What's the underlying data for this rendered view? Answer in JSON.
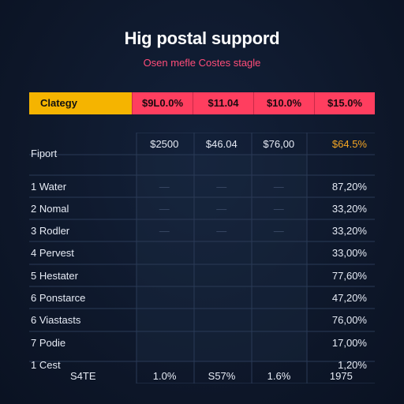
{
  "chart_data": {
    "type": "table",
    "title": "Hig postal suppord",
    "subtitle": "Osen mefle Costes stagle",
    "header": {
      "category_label": "Clategy",
      "columns": [
        "$9L0.0%",
        "$11.04",
        "$10.0%",
        "$15.0%"
      ]
    },
    "totals_row": {
      "label": "Fiport",
      "values": [
        "$2500",
        "$46.04",
        "$76,00",
        "$64.5%"
      ]
    },
    "rows": [
      {
        "label": "1 Water",
        "marks": [
          "—",
          "—",
          "—"
        ],
        "value": "87,20%"
      },
      {
        "label": "2 Nomal",
        "marks": [
          "—",
          "—",
          "—"
        ],
        "value": "33,20%"
      },
      {
        "label": "3 Rodler",
        "marks": [
          "—",
          "—",
          "—"
        ],
        "value": "33,20%"
      },
      {
        "label": "4 Pervest",
        "marks": [
          "",
          "",
          ""
        ],
        "value": "33,00%"
      },
      {
        "label": "5 Hestater",
        "marks": [
          "",
          "",
          ""
        ],
        "value": "77,60%"
      },
      {
        "label": "6 Ponstarce",
        "marks": [
          "",
          "",
          ""
        ],
        "value": "47,20%"
      },
      {
        "label": "6 Viastasts",
        "marks": [
          "",
          "",
          ""
        ],
        "value": "76,00%"
      },
      {
        "label": "7 Podie",
        "marks": [
          "",
          "",
          ""
        ],
        "value": "17,00%"
      },
      {
        "label": "1 Cest",
        "marks": [
          "",
          "",
          ""
        ],
        "value": "1,20%"
      }
    ],
    "footer_row": {
      "label": "S4TE",
      "values": [
        "1.0%",
        "S57%",
        "1.6%",
        "1975"
      ]
    }
  },
  "colors": {
    "background": "#0f1a2e",
    "header_category": "#f5b400",
    "header_value": "#ff3e5f",
    "subtitle": "#ff4d79",
    "highlight": "#f5a623"
  }
}
